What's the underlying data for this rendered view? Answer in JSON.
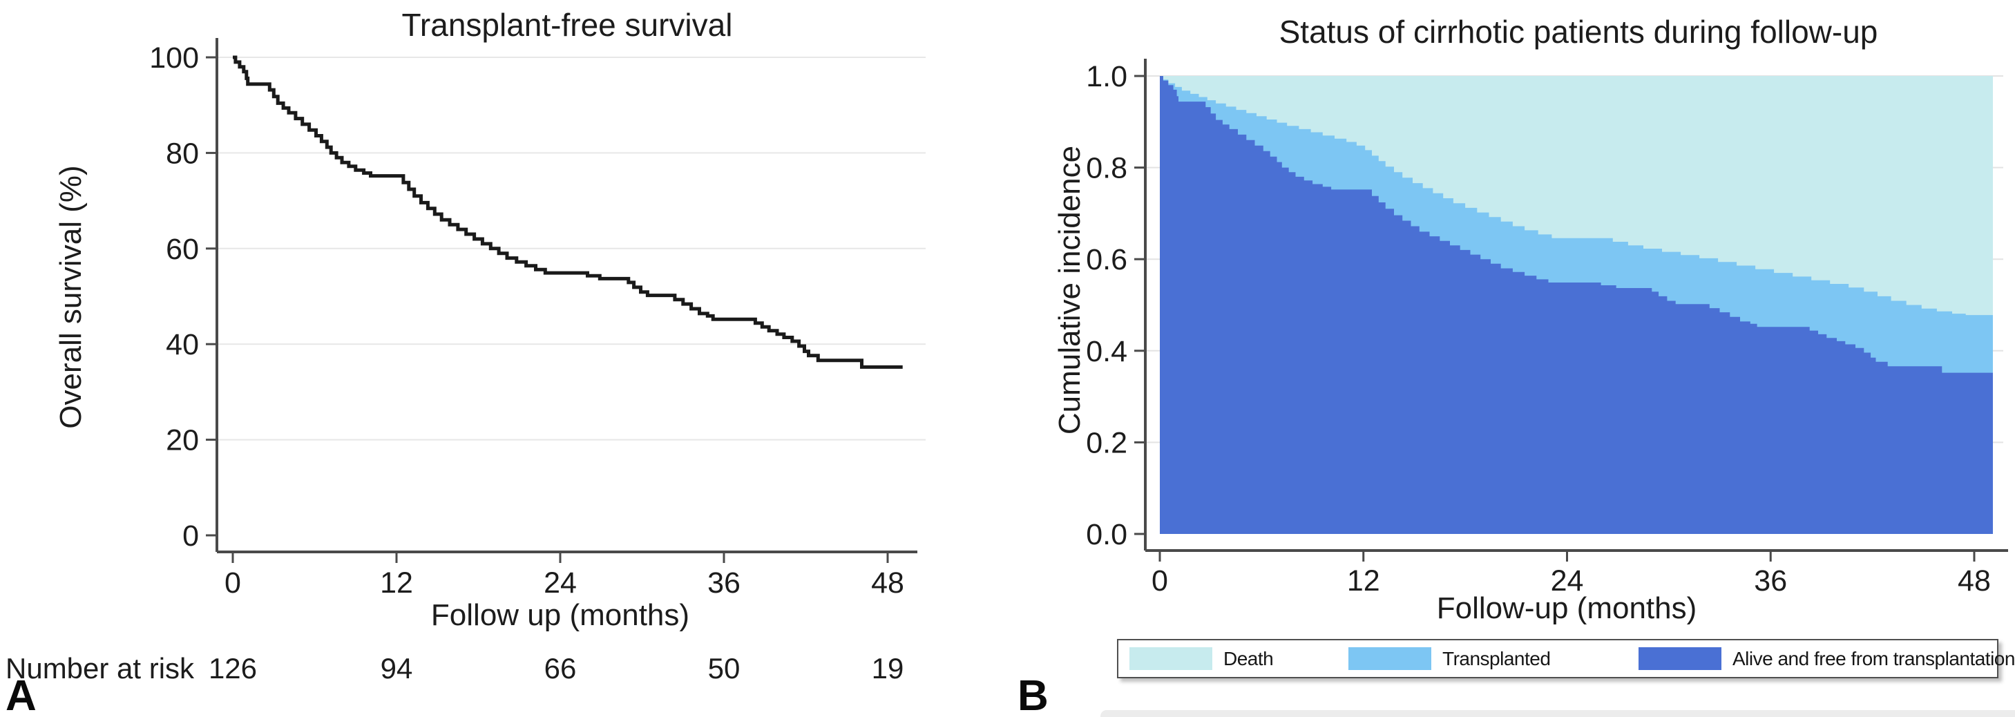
{
  "figure": {
    "panel_a_letter": "A",
    "panel_b_letter": "B"
  },
  "chart_data": [
    {
      "type": "line",
      "subtype": "kaplan-meier-step",
      "title": "Transplant-free survival",
      "xlabel": "Follow up (months)",
      "ylabel": "Overall survival (%)",
      "xticks": [
        0,
        12,
        24,
        36,
        48
      ],
      "yticks": [
        0,
        20,
        40,
        60,
        80,
        100
      ],
      "xlim": [
        0,
        49.1
      ],
      "ylim": [
        0,
        100
      ],
      "grid": "horizontal",
      "curve_color": "#1a1a1a",
      "axis_color": "#4a4a4a",
      "grid_color": "#e7e7e7",
      "number_at_risk": {
        "label": "Number at risk",
        "values": [
          126,
          94,
          66,
          50,
          19
        ]
      },
      "series": [
        {
          "name": "Transplant-free survival",
          "steps": [
            [
              0,
              100
            ],
            [
              0.2,
              99
            ],
            [
              0.5,
              98
            ],
            [
              0.8,
              97
            ],
            [
              1.0,
              95.6
            ],
            [
              1.1,
              94.4
            ],
            [
              2.7,
              93.2
            ],
            [
              3.0,
              91.8
            ],
            [
              3.3,
              90.4
            ],
            [
              3.7,
              89.4
            ],
            [
              4.1,
              88.4
            ],
            [
              4.6,
              87.2
            ],
            [
              5.1,
              86.0
            ],
            [
              5.6,
              84.8
            ],
            [
              6.1,
              83.6
            ],
            [
              6.5,
              82.4
            ],
            [
              6.9,
              81.2
            ],
            [
              7.2,
              80.0
            ],
            [
              7.6,
              79.0
            ],
            [
              8.0,
              78.0
            ],
            [
              8.5,
              77.2
            ],
            [
              9.0,
              76.4
            ],
            [
              9.6,
              75.8
            ],
            [
              10.1,
              75.2
            ],
            [
              12.5,
              73.8
            ],
            [
              12.9,
              72.4
            ],
            [
              13.3,
              71.0
            ],
            [
              13.8,
              69.6
            ],
            [
              14.3,
              68.4
            ],
            [
              14.8,
              67.2
            ],
            [
              15.3,
              66.0
            ],
            [
              15.9,
              65.0
            ],
            [
              16.5,
              64.0
            ],
            [
              17.1,
              63.0
            ],
            [
              17.7,
              62.0
            ],
            [
              18.3,
              61.0
            ],
            [
              18.9,
              60.0
            ],
            [
              19.5,
              59.0
            ],
            [
              20.1,
              58.0
            ],
            [
              20.8,
              57.2
            ],
            [
              21.5,
              56.4
            ],
            [
              22.2,
              55.6
            ],
            [
              22.9,
              54.9
            ],
            [
              26.0,
              54.3
            ],
            [
              26.9,
              53.7
            ],
            [
              29.0,
              52.9
            ],
            [
              29.4,
              51.9
            ],
            [
              29.9,
              50.9
            ],
            [
              30.4,
              50.2
            ],
            [
              32.4,
              49.3
            ],
            [
              33.0,
              48.4
            ],
            [
              33.6,
              47.4
            ],
            [
              34.2,
              46.4
            ],
            [
              34.8,
              45.9
            ],
            [
              35.2,
              45.2
            ],
            [
              38.3,
              44.4
            ],
            [
              38.8,
              43.6
            ],
            [
              39.3,
              42.8
            ],
            [
              39.9,
              42.1
            ],
            [
              40.4,
              41.4
            ],
            [
              41.0,
              40.6
            ],
            [
              41.5,
              39.6
            ],
            [
              41.9,
              38.5
            ],
            [
              42.2,
              37.6
            ],
            [
              42.9,
              36.6
            ],
            [
              46.1,
              35.2
            ],
            [
              49.1,
              35.2
            ]
          ]
        }
      ]
    },
    {
      "type": "area",
      "subtype": "stacked-cumulative-incidence",
      "title": "Status of cirrhotic patients during follow-up",
      "xlabel": "Follow-up (months)",
      "ylabel": "Cumulative incidence",
      "xticks": [
        0,
        12,
        24,
        36,
        48
      ],
      "yticks": [
        "0.0",
        "0.2",
        "0.4",
        "0.6",
        "0.8",
        "1.0"
      ],
      "xlim": [
        0,
        49.1
      ],
      "ylim": [
        0,
        1
      ],
      "grid": "horizontal",
      "axis_color": "#4a4a4a",
      "grid_color": "#e3e3e3",
      "legend_position": "bottom",
      "legend": [
        {
          "label": "Death",
          "color": "#c7ebee"
        },
        {
          "label": "Transplanted",
          "color": "#7dc6f3"
        },
        {
          "label": "Alive and free from transplantation",
          "color": "#4a70d4"
        }
      ],
      "series": [
        {
          "name": "Death",
          "color": "#c7ebee",
          "stack_position": "top",
          "top_boundary": [
            [
              0,
              1.0
            ],
            [
              49.1,
              1.0
            ]
          ]
        },
        {
          "name": "Transplanted",
          "color": "#7dc6f3",
          "stack_position": "middle",
          "top_boundary": [
            [
              0,
              1.0
            ],
            [
              0.2,
              0.992
            ],
            [
              0.5,
              0.984
            ],
            [
              0.9,
              0.976
            ],
            [
              1.3,
              0.968
            ],
            [
              1.8,
              0.961
            ],
            [
              2.3,
              0.954
            ],
            [
              2.8,
              0.947
            ],
            [
              3.3,
              0.94
            ],
            [
              3.9,
              0.933
            ],
            [
              4.5,
              0.926
            ],
            [
              5.1,
              0.919
            ],
            [
              5.7,
              0.912
            ],
            [
              6.3,
              0.905
            ],
            [
              6.9,
              0.898
            ],
            [
              7.5,
              0.891
            ],
            [
              8.2,
              0.884
            ],
            [
              8.9,
              0.877
            ],
            [
              9.6,
              0.87
            ],
            [
              10.3,
              0.863
            ],
            [
              11.0,
              0.856
            ],
            [
              11.6,
              0.848
            ],
            [
              12.1,
              0.838
            ],
            [
              12.5,
              0.826
            ],
            [
              12.9,
              0.814
            ],
            [
              13.3,
              0.802
            ],
            [
              13.8,
              0.79
            ],
            [
              14.3,
              0.778
            ],
            [
              14.9,
              0.766
            ],
            [
              15.5,
              0.755
            ],
            [
              16.1,
              0.744
            ],
            [
              16.7,
              0.733
            ],
            [
              17.3,
              0.722
            ],
            [
              18.0,
              0.712
            ],
            [
              18.7,
              0.702
            ],
            [
              19.4,
              0.692
            ],
            [
              20.1,
              0.682
            ],
            [
              20.8,
              0.672
            ],
            [
              21.5,
              0.663
            ],
            [
              22.3,
              0.654
            ],
            [
              23.1,
              0.646
            ],
            [
              26.7,
              0.638
            ],
            [
              27.6,
              0.63
            ],
            [
              28.5,
              0.623
            ],
            [
              29.6,
              0.616
            ],
            [
              30.7,
              0.609
            ],
            [
              31.8,
              0.602
            ],
            [
              32.9,
              0.594
            ],
            [
              34.0,
              0.586
            ],
            [
              35.1,
              0.578
            ],
            [
              36.2,
              0.57
            ],
            [
              37.3,
              0.562
            ],
            [
              38.4,
              0.554
            ],
            [
              39.5,
              0.546
            ],
            [
              40.6,
              0.538
            ],
            [
              41.5,
              0.529
            ],
            [
              42.3,
              0.519
            ],
            [
              43.1,
              0.509
            ],
            [
              44.0,
              0.5
            ],
            [
              44.9,
              0.492
            ],
            [
              45.8,
              0.486
            ],
            [
              46.7,
              0.481
            ],
            [
              47.5,
              0.478
            ],
            [
              49.1,
              0.478
            ]
          ]
        },
        {
          "name": "Alive and free from transplantation",
          "color": "#4a70d4",
          "stack_position": "bottom",
          "top_boundary_from": "panel_a_km_fraction"
        }
      ]
    }
  ]
}
